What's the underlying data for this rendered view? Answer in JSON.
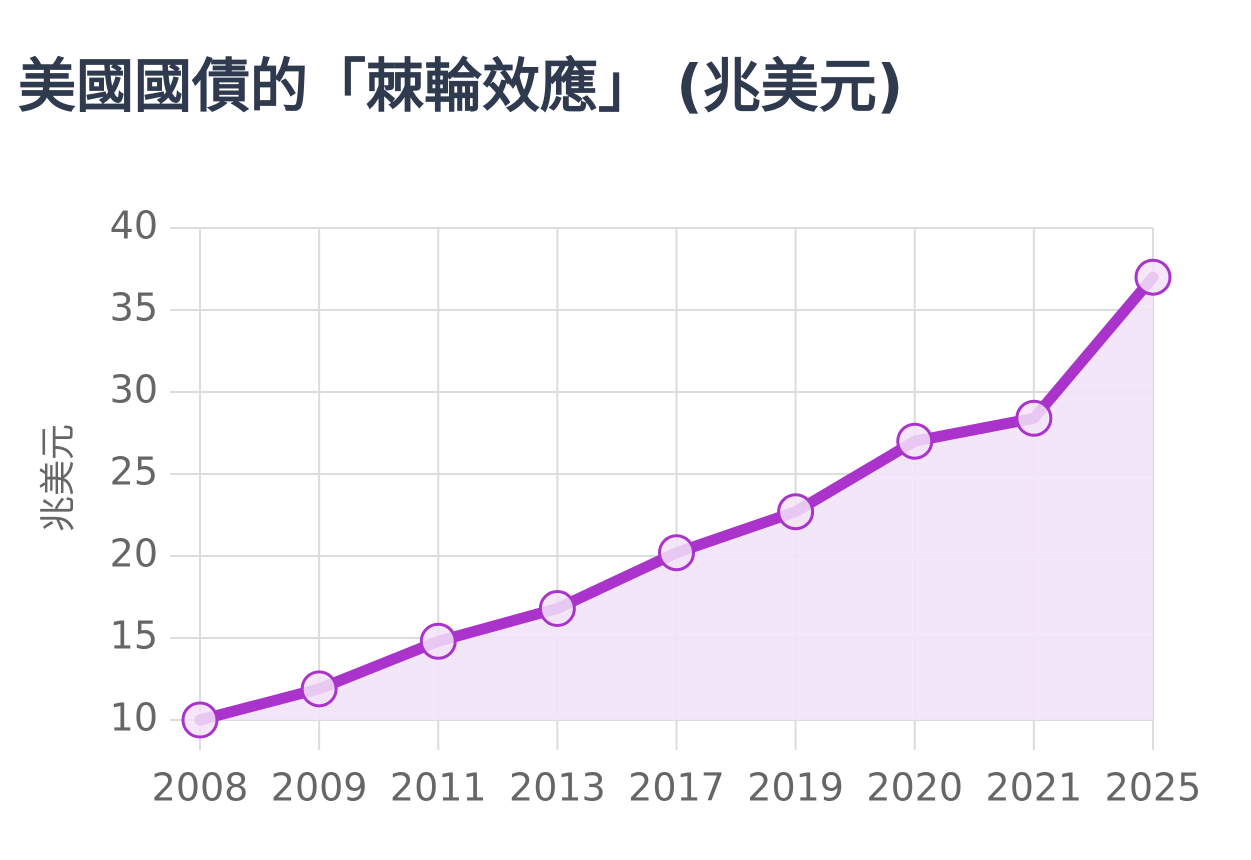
{
  "chart_data": {
    "type": "line",
    "title": "美國國債的「棘輪效應」 (兆美元)",
    "y_label": "兆美元",
    "categories": [
      "2008",
      "2009",
      "2011",
      "2013",
      "2017",
      "2019",
      "2020",
      "2021",
      "2025"
    ],
    "values": [
      10,
      11.9,
      14.8,
      16.8,
      20.2,
      22.7,
      27.0,
      28.4,
      37.0
    ],
    "color": "#aa33cc",
    "fill_color": "#f3e3f8",
    "ylim": [
      10,
      40
    ],
    "yticks": [
      10,
      15,
      20,
      25,
      30,
      35,
      40
    ],
    "grid": true
  }
}
